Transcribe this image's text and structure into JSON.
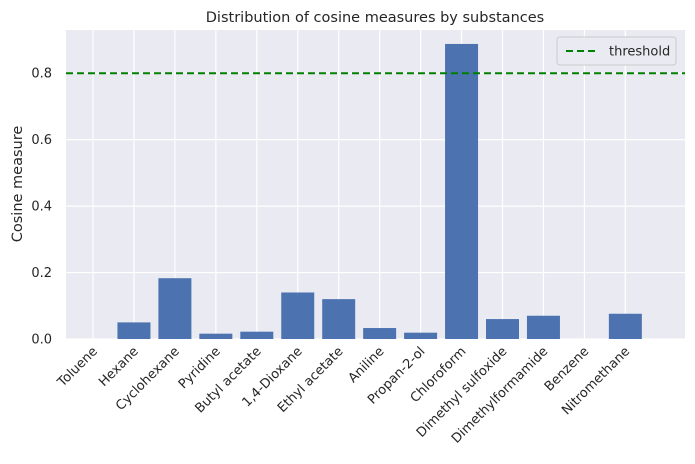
{
  "chart_data": {
    "type": "bar",
    "title": "Distribution of cosine measures by substances",
    "xlabel": "",
    "ylabel": "Cosine measure",
    "categories": [
      "Toluene",
      "Hexane",
      "Cyclohexane",
      "Pyridine",
      "Butyl acetate",
      "1,4-Dioxane",
      "Ethyl acetate",
      "Aniline",
      "Propan-2-ol",
      "Chloroform",
      "Dimethyl sulfoxide",
      "Dimethylformamide",
      "Benzene",
      "Nitromethane"
    ],
    "values": [
      0.0,
      0.05,
      0.183,
      0.016,
      0.022,
      0.14,
      0.12,
      0.033,
      0.019,
      0.888,
      0.06,
      0.07,
      0.0,
      0.076
    ],
    "ylim": [
      0,
      0.93
    ],
    "yticks": [
      0.0,
      0.2,
      0.4,
      0.6,
      0.8
    ],
    "ytick_labels": [
      "0.0",
      "0.2",
      "0.4",
      "0.6",
      "0.8"
    ],
    "threshold": {
      "value": 0.8,
      "label": "threshold",
      "color": "#008000",
      "style": "dashed"
    },
    "bar_color": "#4c72b0",
    "background": "#eaeaf2",
    "grid": true,
    "legend_position": "top-right"
  }
}
